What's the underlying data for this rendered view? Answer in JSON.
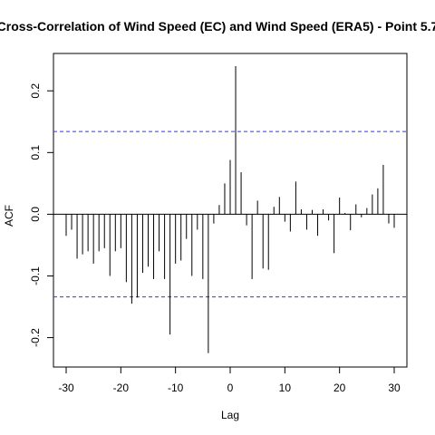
{
  "chart_data": {
    "type": "bar",
    "title": "Cross-Correlation of Wind Speed (EC) and Wind Speed (ERA5) - Point 5.7",
    "xlabel": "Lag",
    "ylabel": "ACF",
    "xlim": [
      -30,
      30
    ],
    "ylim": [
      -0.23,
      0.24
    ],
    "xticks": [
      -30,
      -20,
      -10,
      0,
      10,
      20,
      30
    ],
    "yticks": [
      -0.2,
      -0.1,
      0.0,
      0.1,
      0.2
    ],
    "ytick_labels": [
      "-0.2",
      "-0.1",
      "0.0",
      "0.1",
      "0.2"
    ],
    "confidence_limits": [
      0.134,
      -0.134
    ],
    "colors": {
      "bars": "#000000",
      "confidence": "#3333ff",
      "axes": "#000000"
    },
    "x": [
      -30,
      -29,
      -28,
      -27,
      -26,
      -25,
      -24,
      -23,
      -22,
      -21,
      -20,
      -19,
      -18,
      -17,
      -16,
      -15,
      -14,
      -13,
      -12,
      -11,
      -10,
      -9,
      -8,
      -7,
      -6,
      -5,
      -4,
      -3,
      -2,
      -1,
      0,
      1,
      2,
      3,
      4,
      5,
      6,
      7,
      8,
      9,
      10,
      11,
      12,
      13,
      14,
      15,
      16,
      17,
      18,
      19,
      20,
      21,
      22,
      23,
      24,
      25,
      26,
      27,
      28,
      29,
      30
    ],
    "values": [
      -0.035,
      -0.025,
      -0.072,
      -0.065,
      -0.06,
      -0.08,
      -0.06,
      -0.055,
      -0.1,
      -0.06,
      -0.055,
      -0.11,
      -0.145,
      -0.135,
      -0.095,
      -0.085,
      -0.105,
      -0.06,
      -0.105,
      -0.195,
      -0.08,
      -0.075,
      -0.04,
      -0.1,
      -0.025,
      -0.105,
      -0.225,
      -0.015,
      0.015,
      0.05,
      0.088,
      0.24,
      0.068,
      -0.018,
      -0.105,
      0.022,
      -0.088,
      -0.09,
      0.012,
      0.028,
      -0.012,
      -0.028,
      0.053,
      0.008,
      -0.025,
      0.007,
      -0.035,
      0.008,
      -0.01,
      -0.063,
      0.027,
      0.002,
      -0.026,
      0.016,
      -0.005,
      0.01,
      0.032,
      0.042,
      0.08,
      -0.015,
      -0.022
    ]
  }
}
